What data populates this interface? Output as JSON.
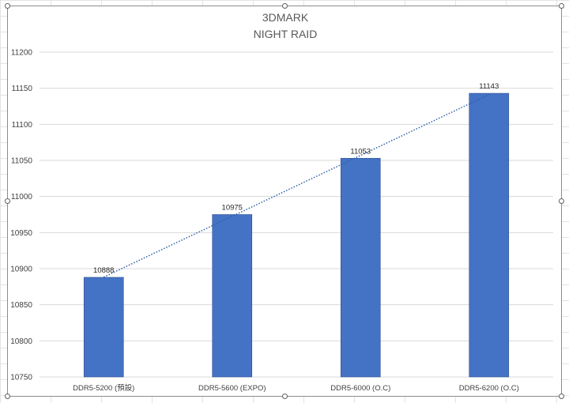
{
  "chart_data": {
    "type": "bar",
    "title": "3DMARK",
    "subtitle": "NIGHT RAID",
    "categories": [
      "DDR5-5200 (預設)",
      "DDR5-5600 (EXPO)",
      "DDR5-6000 (O.C)",
      "DDR5-6200 (O.C)"
    ],
    "values": [
      10888,
      10975,
      11053,
      11143
    ],
    "ylim": [
      10750,
      11200
    ],
    "yticks": [
      10750,
      10800,
      10850,
      10900,
      10950,
      11000,
      11050,
      11100,
      11150,
      11200
    ],
    "xlabel": "",
    "ylabel": "",
    "grid": true,
    "legend": "none",
    "trendline": "linear, dotted",
    "colors": {
      "bar": "#4472c4",
      "trendline": "#2e5fa8",
      "grid": "#d9d9d9"
    }
  }
}
